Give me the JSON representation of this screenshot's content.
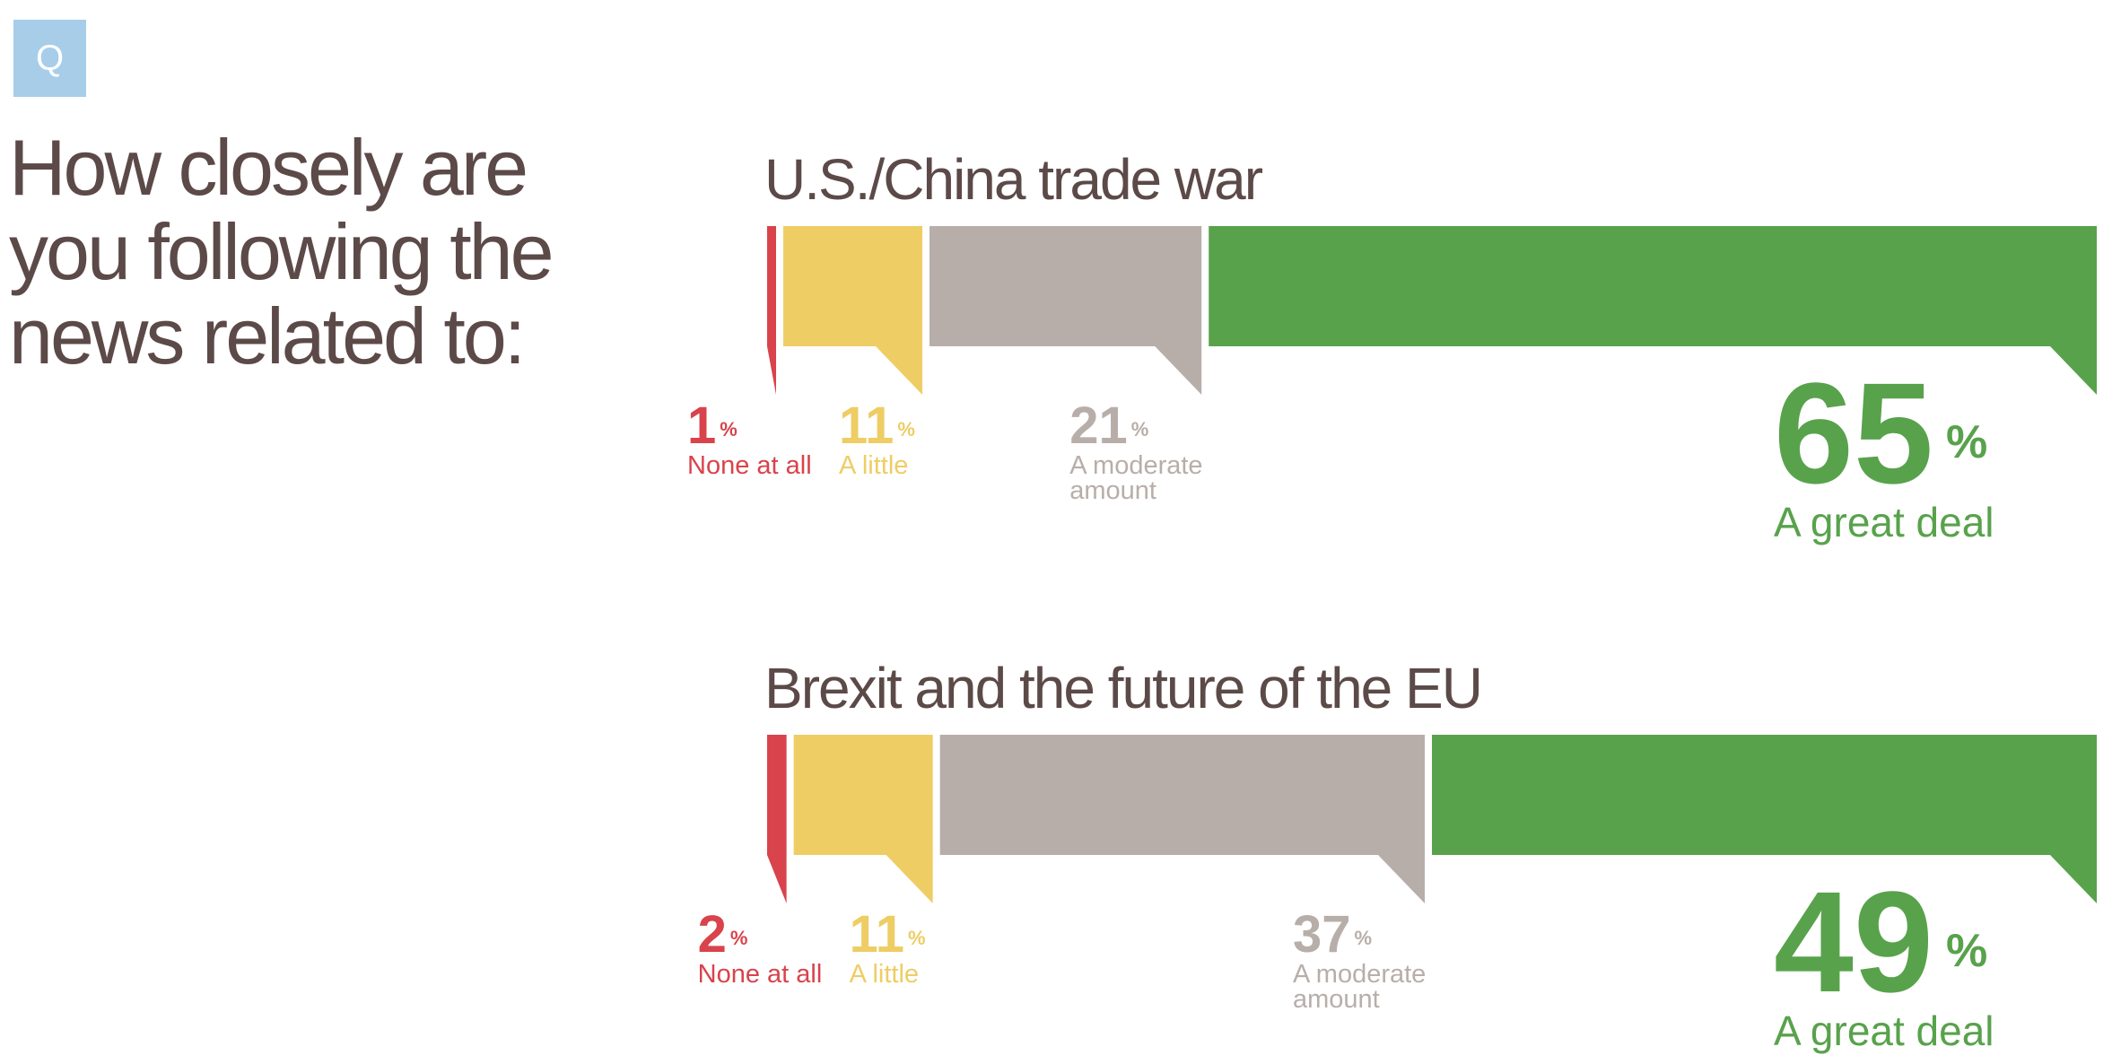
{
  "badge": "Q",
  "question": "How closely are you following the news related to:",
  "chart_data": [
    {
      "type": "bar",
      "title": "U.S./China trade war",
      "categories": [
        "None at all",
        "A little",
        "A moderate amount",
        "A great deal"
      ],
      "values": [
        1,
        11,
        21,
        65
      ],
      "unit": "%",
      "colors": [
        "#d9434b",
        "#eecd65",
        "#b8aea9",
        "#58a24c"
      ]
    },
    {
      "type": "bar",
      "title": "Brexit and the future of the EU",
      "categories": [
        "None at all",
        "A little",
        "A moderate amount",
        "A great deal"
      ],
      "values": [
        2,
        11,
        37,
        49
      ],
      "unit": "%",
      "colors": [
        "#d9434b",
        "#eecd65",
        "#b8aea9",
        "#58a24c"
      ]
    }
  ]
}
